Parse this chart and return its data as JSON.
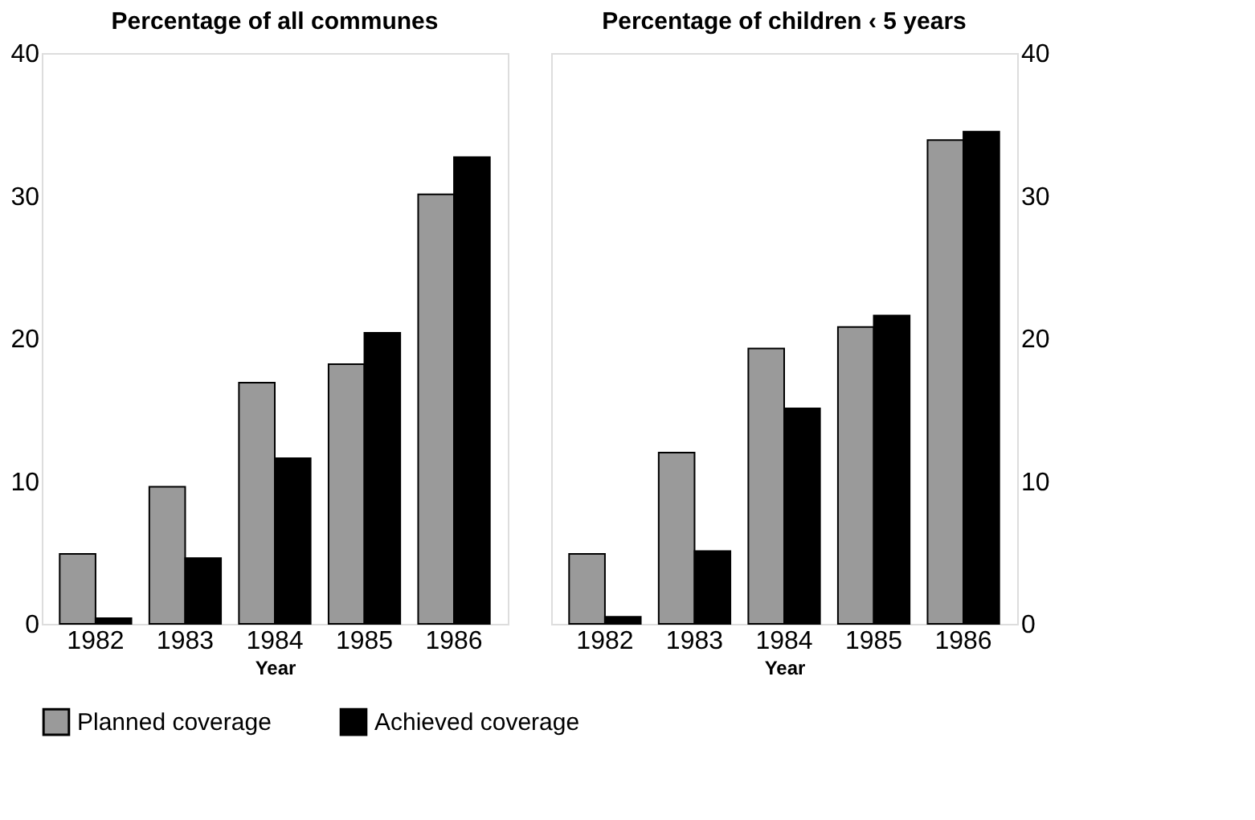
{
  "chart_data": [
    {
      "type": "bar",
      "title": "Percentage of all communes",
      "xlabel": "Year",
      "categories": [
        "1982",
        "1983",
        "1984",
        "1985",
        "1986"
      ],
      "series": [
        {
          "name": "Planned coverage",
          "color": "#9a9a9a",
          "values": [
            4.9,
            9.6,
            16.9,
            18.2,
            30.1
          ]
        },
        {
          "name": "Achieved coverage",
          "color": "#000000",
          "values": [
            0.4,
            4.6,
            11.6,
            20.4,
            32.7
          ]
        }
      ],
      "ylim": [
        0,
        40
      ],
      "yticks": [
        0,
        10,
        20,
        30,
        40
      ],
      "grid": false,
      "legend": "bottom"
    },
    {
      "type": "bar",
      "title": "Percentage of children ‹ 5 years",
      "xlabel": "Year",
      "categories": [
        "1982",
        "1983",
        "1984",
        "1985",
        "1986"
      ],
      "series": [
        {
          "name": "Planned coverage",
          "color": "#9a9a9a",
          "values": [
            4.9,
            12.0,
            19.3,
            20.8,
            33.9
          ]
        },
        {
          "name": "Achieved coverage",
          "color": "#000000",
          "values": [
            0.5,
            5.1,
            15.1,
            21.6,
            34.5
          ]
        }
      ],
      "ylim": [
        0,
        40
      ],
      "yticks": [
        0,
        10,
        20,
        30,
        40
      ],
      "grid": false,
      "legend": "bottom"
    }
  ]
}
